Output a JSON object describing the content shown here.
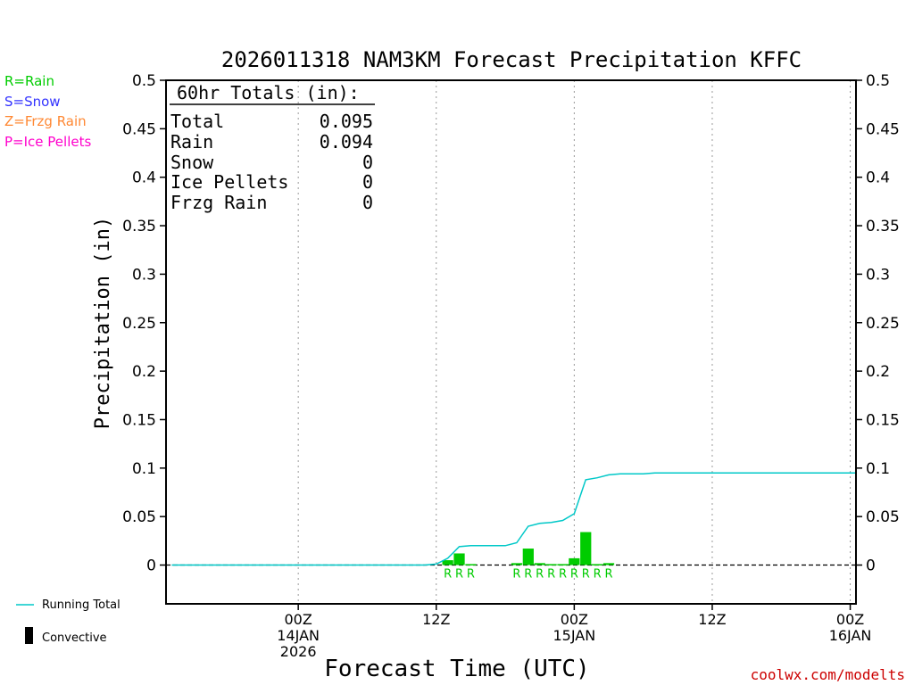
{
  "chart_data": {
    "type": "bar",
    "title": "2026011318 NAM3KM Forecast Precipitation KFFC",
    "xlabel": "Forecast Time (UTC)",
    "ylabel": "Precipitation (in)",
    "ylim": [
      -0.04,
      0.5
    ],
    "xlim_hours": [
      -5.5,
      54.5
    ],
    "yticks": [
      0,
      0.05,
      0.1,
      0.15,
      0.2,
      0.25,
      0.3,
      0.35,
      0.4,
      0.45,
      0.5
    ],
    "ytick_labels": [
      "0",
      "0.05",
      "0.1",
      "0.15",
      "0.2",
      "0.25",
      "0.3",
      "0.35",
      "0.4",
      "0.45",
      "0.5"
    ],
    "xticks": [
      {
        "hour": 6,
        "lines": [
          "00Z",
          "14JAN",
          "2026"
        ]
      },
      {
        "hour": 18,
        "lines": [
          "12Z"
        ]
      },
      {
        "hour": 30,
        "lines": [
          "00Z",
          "15JAN"
        ]
      },
      {
        "hour": 42,
        "lines": [
          "12Z"
        ]
      },
      {
        "hour": 54,
        "lines": [
          "00Z",
          "16JAN"
        ]
      }
    ],
    "bars": [
      {
        "hour": 19,
        "value": 0.005,
        "type": "R"
      },
      {
        "hour": 20,
        "value": 0.012,
        "type": "R"
      },
      {
        "hour": 21,
        "value": 0.001,
        "type": "R"
      },
      {
        "hour": 25,
        "value": 0.002,
        "type": "R"
      },
      {
        "hour": 26,
        "value": 0.017,
        "type": "R"
      },
      {
        "hour": 27,
        "value": 0.002,
        "type": "R"
      },
      {
        "hour": 28,
        "value": 0.001,
        "type": "R"
      },
      {
        "hour": 29,
        "value": 0.001,
        "type": "R"
      },
      {
        "hour": 30,
        "value": 0.007,
        "type": "R"
      },
      {
        "hour": 31,
        "value": 0.034,
        "type": "R"
      },
      {
        "hour": 32,
        "value": 0.001,
        "type": "R"
      },
      {
        "hour": 33,
        "value": 0.002,
        "type": "R"
      }
    ],
    "series": [
      {
        "name": "Running Total",
        "color": "#00c8c8",
        "points": [
          [
            -5,
            0
          ],
          [
            17,
            0
          ],
          [
            18,
            0.001
          ],
          [
            19,
            0.007
          ],
          [
            20,
            0.019
          ],
          [
            21,
            0.02
          ],
          [
            24,
            0.02
          ],
          [
            25,
            0.023
          ],
          [
            26,
            0.04
          ],
          [
            27,
            0.043
          ],
          [
            28,
            0.044
          ],
          [
            29,
            0.046
          ],
          [
            30,
            0.053
          ],
          [
            31,
            0.088
          ],
          [
            32,
            0.09
          ],
          [
            33,
            0.093
          ],
          [
            34,
            0.094
          ],
          [
            36,
            0.094
          ],
          [
            37,
            0.095
          ],
          [
            54.5,
            0.095
          ]
        ]
      }
    ],
    "bar_color": "#00cc00",
    "zero_line": "dashed"
  },
  "precip_legend": [
    {
      "text": "R=Rain",
      "color": "#00cc00"
    },
    {
      "text": "S=Snow",
      "color": "#3333ff"
    },
    {
      "text": "Z=Frzg Rain",
      "color": "#ff8833"
    },
    {
      "text": "P=Ice Pellets",
      "color": "#ff00cc"
    }
  ],
  "totals": {
    "header": "60hr Totals (in):",
    "rows": [
      {
        "label": "Total",
        "value": "0.095"
      },
      {
        "label": "Rain",
        "value": "0.094"
      },
      {
        "label": "Snow",
        "value": "0"
      },
      {
        "label": "Ice Pellets",
        "value": "0"
      },
      {
        "label": "Frzg Rain",
        "value": "0"
      }
    ]
  },
  "bottom_legend": {
    "running_total": "Running Total",
    "convective": "Convective"
  },
  "credit": "coolwx.com/modelts",
  "colors": {
    "running_total": "#00c8c8",
    "rain": "#00cc00",
    "credit": "#cc0000"
  }
}
